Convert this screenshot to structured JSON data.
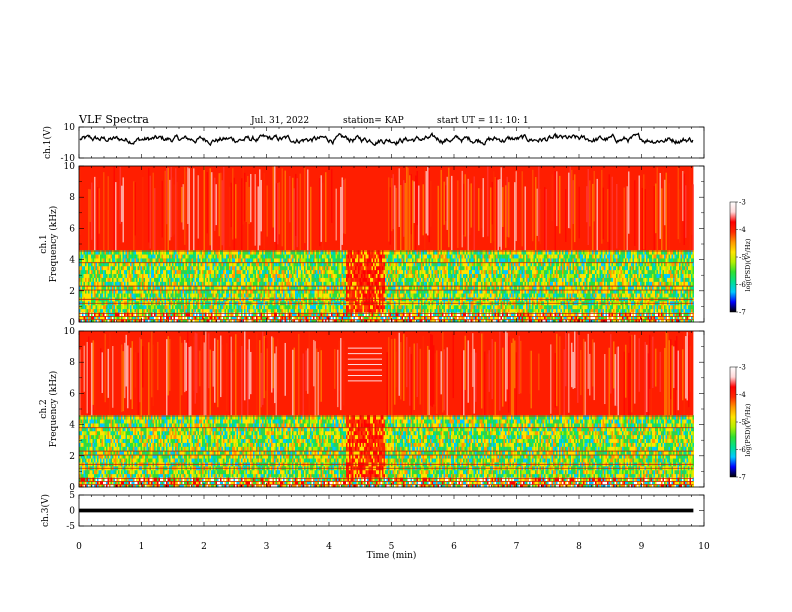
{
  "header": {
    "title": "VLF Spectra",
    "date": "Jul. 31, 2022",
    "station": "station= KAP",
    "start": "start UT =  11: 10: 1"
  },
  "chart_data": [
    {
      "type": "line",
      "panel": "ch1-waveform",
      "ylabel": "ch.1(V)",
      "ylim": [
        -10,
        10
      ],
      "yticks": [
        "10",
        "-10"
      ],
      "xlim": [
        0,
        10
      ],
      "data_extent_min": 9.83,
      "color": "#000000",
      "noise_center": 2,
      "noise_amplitude": 6
    },
    {
      "type": "heatmap",
      "panel": "ch1-spectrogram",
      "ylabel_top": "ch.1",
      "ylabel_bottom": "Frequency (kHz)",
      "ylim": [
        0,
        10
      ],
      "yticks": [
        "0",
        "2",
        "4",
        "6",
        "8",
        "10"
      ],
      "xlim": [
        0,
        10
      ],
      "data_extent_min": 9.83,
      "quiet_interval_min": [
        4.27,
        4.88
      ],
      "colorbar": {
        "label": "log(PSD)(V²/Hz)",
        "range": [
          -7,
          -3
        ],
        "ticks": [
          "-3",
          "-4",
          "-5",
          "-6",
          "-7"
        ],
        "colors": [
          "#000000",
          "#0000ff",
          "#00c8ff",
          "#00e090",
          "#30e030",
          "#b4f000",
          "#ffe400",
          "#ff9600",
          "#ff2a00",
          "#ff0000",
          "#ffd8d8",
          "#ffffff"
        ]
      }
    },
    {
      "type": "heatmap",
      "panel": "ch2-spectrogram",
      "ylabel_top": "ch.2",
      "ylabel_bottom": "Frequency (kHz)",
      "ylim": [
        0,
        10
      ],
      "yticks": [
        "0",
        "2",
        "4",
        "6",
        "8",
        "10"
      ],
      "xlim": [
        0,
        10
      ],
      "data_extent_min": 9.83,
      "quiet_interval_min": [
        4.27,
        4.88
      ],
      "colorbar": {
        "label": "log(PSD)(V²/Hz)",
        "range": [
          -7,
          -3
        ],
        "ticks": [
          "-3",
          "-4",
          "-5",
          "-6",
          "-7"
        ],
        "colors": [
          "#000000",
          "#0000ff",
          "#00c8ff",
          "#00e090",
          "#30e030",
          "#b4f000",
          "#ffe400",
          "#ff9600",
          "#ff2a00",
          "#ff0000",
          "#ffd8d8",
          "#ffffff"
        ]
      }
    },
    {
      "type": "line",
      "panel": "ch3-waveform",
      "ylabel": "ch.3(V)",
      "ylim": [
        -5,
        5
      ],
      "yticks": [
        "5",
        "0",
        "-5"
      ],
      "xlim": [
        0,
        10
      ],
      "data_extent_min": 9.83,
      "value_band": [
        -0.6,
        0.6
      ],
      "color": "#000000"
    }
  ],
  "xaxis": {
    "label": "Time (min)",
    "ticks": [
      "0",
      "1",
      "2",
      "3",
      "4",
      "5",
      "6",
      "7",
      "8",
      "9",
      "10"
    ],
    "range": [
      0,
      10
    ]
  }
}
